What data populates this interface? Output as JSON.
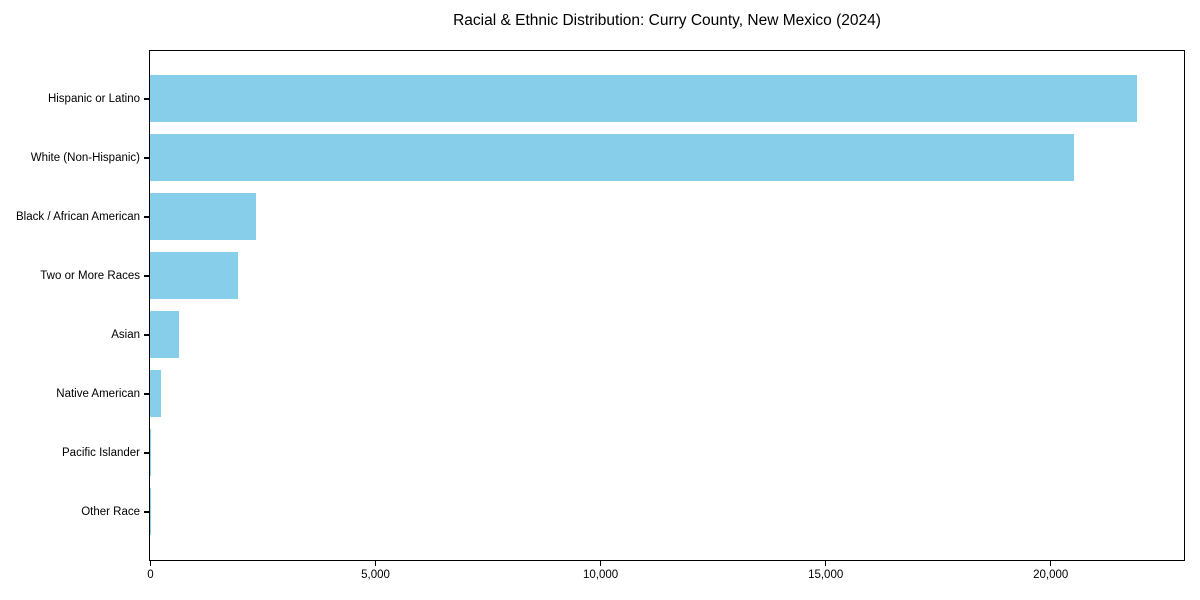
{
  "chart_data": {
    "type": "bar",
    "orientation": "horizontal",
    "title": "Racial & Ethnic Distribution: Curry County, New Mexico (2024)",
    "xlabel": "",
    "ylabel": "",
    "categories": [
      "Hispanic or Latino",
      "White (Non-Hispanic)",
      "Black / African American",
      "Two or More Races",
      "Asian",
      "Native American",
      "Pacific Islander",
      "Other Race"
    ],
    "values": [
      21900,
      20500,
      2350,
      1950,
      650,
      250,
      20,
      10
    ],
    "xlim": [
      0,
      22950
    ],
    "xticks": [
      0,
      5000,
      10000,
      15000,
      20000
    ],
    "xtick_labels": [
      "0",
      "5,000",
      "10,000",
      "15,000",
      "20,000"
    ],
    "grid": false,
    "legend": null,
    "bar_color": "#87CEEB",
    "axis_color": "#000000",
    "background_color": "#FFFFFF"
  }
}
